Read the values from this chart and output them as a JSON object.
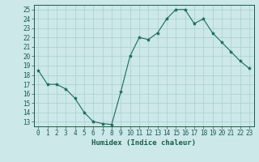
{
  "x": [
    0,
    1,
    2,
    3,
    4,
    5,
    6,
    7,
    8,
    9,
    10,
    11,
    12,
    13,
    14,
    15,
    16,
    17,
    18,
    19,
    20,
    21,
    22,
    23
  ],
  "y": [
    18.5,
    17.0,
    17.0,
    16.5,
    15.5,
    14.0,
    13.0,
    12.8,
    12.7,
    16.2,
    20.0,
    22.0,
    21.8,
    22.5,
    24.0,
    25.0,
    25.0,
    23.5,
    24.0,
    22.5,
    21.5,
    20.5,
    19.5,
    18.7
  ],
  "line_color": "#1a6b5a",
  "marker": "*",
  "marker_size": 3,
  "bg_color": "#cce8e8",
  "grid_color": "#aacfcf",
  "xlabel": "Humidex (Indice chaleur)",
  "ylim": [
    12.5,
    25.5
  ],
  "xlim": [
    -0.5,
    23.5
  ],
  "yticks": [
    13,
    14,
    15,
    16,
    17,
    18,
    19,
    20,
    21,
    22,
    23,
    24,
    25
  ],
  "xticks": [
    0,
    1,
    2,
    3,
    4,
    5,
    6,
    7,
    8,
    9,
    10,
    11,
    12,
    13,
    14,
    15,
    16,
    17,
    18,
    19,
    20,
    21,
    22,
    23
  ],
  "font_color": "#1a5c4a",
  "tick_fontsize": 5.5,
  "xlabel_fontsize": 6.5,
  "linewidth": 0.8
}
